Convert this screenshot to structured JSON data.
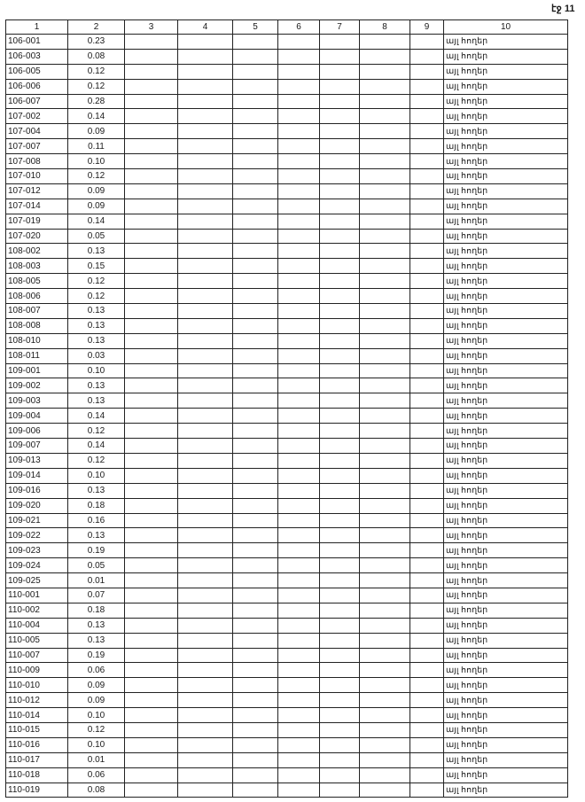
{
  "page_label": "էջ 11",
  "headers": [
    "1",
    "2",
    "3",
    "4",
    "5",
    "6",
    "7",
    "8",
    "9",
    "10"
  ],
  "rows": [
    [
      "106-001",
      "0.23",
      "այլ հողեր"
    ],
    [
      "106-003",
      "0.08",
      "այլ հողեր"
    ],
    [
      "106-005",
      "0.12",
      "այլ հողեր"
    ],
    [
      "106-006",
      "0.12",
      "այլ հողեր"
    ],
    [
      "106-007",
      "0.28",
      "այլ հողեր"
    ],
    [
      "107-002",
      "0.14",
      "այլ հողեր"
    ],
    [
      "107-004",
      "0.09",
      "այլ հողեր"
    ],
    [
      "107-007",
      "0.11",
      "այլ հողեր"
    ],
    [
      "107-008",
      "0.10",
      "այլ հողեր"
    ],
    [
      "107-010",
      "0.12",
      "այլ հողեր"
    ],
    [
      "107-012",
      "0.09",
      "այլ հողեր"
    ],
    [
      "107-014",
      "0.09",
      "այլ հողեր"
    ],
    [
      "107-019",
      "0.14",
      "այլ հողեր"
    ],
    [
      "107-020",
      "0.05",
      "այլ հողեր"
    ],
    [
      "108-002",
      "0.13",
      "այլ հողեր"
    ],
    [
      "108-003",
      "0.15",
      "այլ հողեր"
    ],
    [
      "108-005",
      "0.12",
      "այլ հողեր"
    ],
    [
      "108-006",
      "0.12",
      "այլ հողեր"
    ],
    [
      "108-007",
      "0.13",
      "այլ հողեր"
    ],
    [
      "108-008",
      "0.13",
      "այլ հողեր"
    ],
    [
      "108-010",
      "0.13",
      "այլ հողեր"
    ],
    [
      "108-011",
      "0.03",
      "այլ հողեր"
    ],
    [
      "109-001",
      "0.10",
      "այլ հողեր"
    ],
    [
      "109-002",
      "0.13",
      "այլ հողեր"
    ],
    [
      "109-003",
      "0.13",
      "այլ հողեր"
    ],
    [
      "109-004",
      "0.14",
      "այլ հողեր"
    ],
    [
      "109-006",
      "0.12",
      "այլ հողեր"
    ],
    [
      "109-007",
      "0.14",
      "այլ հողեր"
    ],
    [
      "109-013",
      "0.12",
      "այլ հողեր"
    ],
    [
      "109-014",
      "0.10",
      "այլ հողեր"
    ],
    [
      "109-016",
      "0.13",
      "այլ հողեր"
    ],
    [
      "109-020",
      "0.18",
      "այլ հողեր"
    ],
    [
      "109-021",
      "0.16",
      "այլ հողեր"
    ],
    [
      "109-022",
      "0.13",
      "այլ հողեր"
    ],
    [
      "109-023",
      "0.19",
      "այլ հողեր"
    ],
    [
      "109-024",
      "0.05",
      "այլ հողեր"
    ],
    [
      "109-025",
      "0.01",
      "այլ հողեր"
    ],
    [
      "110-001",
      "0.07",
      "այլ հողեր"
    ],
    [
      "110-002",
      "0.18",
      "այլ հողեր"
    ],
    [
      "110-004",
      "0.13",
      "այլ հողեր"
    ],
    [
      "110-005",
      "0.13",
      "այլ հողեր"
    ],
    [
      "110-007",
      "0.19",
      "այլ հողեր"
    ],
    [
      "110-009",
      "0.06",
      "այլ հողեր"
    ],
    [
      "110-010",
      "0.09",
      "այլ հողեր"
    ],
    [
      "110-012",
      "0.09",
      "այլ հողեր"
    ],
    [
      "110-014",
      "0.10",
      "այլ հողեր"
    ],
    [
      "110-015",
      "0.12",
      "այլ հողեր"
    ],
    [
      "110-016",
      "0.10",
      "այլ հողեր"
    ],
    [
      "110-017",
      "0.01",
      "այլ հողեր"
    ],
    [
      "110-018",
      "0.06",
      "այլ հողեր"
    ],
    [
      "110-019",
      "0.08",
      "այլ հողեր"
    ]
  ]
}
